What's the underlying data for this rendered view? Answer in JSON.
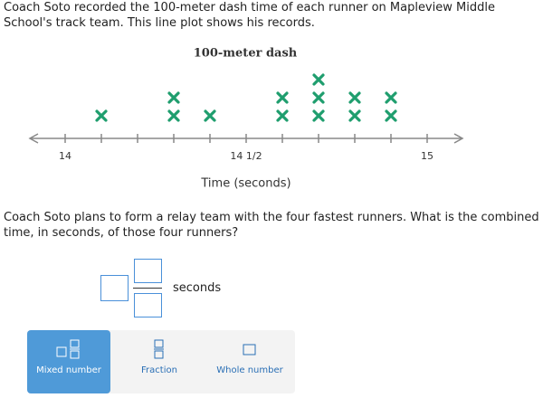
{
  "question": {
    "intro": "Coach Soto recorded the 100-meter dash time of each runner on Mapleview Middle School's track team. This line plot shows his records.",
    "prompt": "Coach Soto plans to form a relay team with the four fastest runners. What is the combined time, in seconds, of those four runners?"
  },
  "chart_data": {
    "type": "line-plot",
    "title": "100-meter dash",
    "x_label": "Time (seconds)",
    "x": [
      14.1,
      14.3,
      14.4,
      14.6,
      14.7,
      14.8,
      14.9
    ],
    "values": [
      1,
      2,
      1,
      2,
      3,
      2,
      2
    ],
    "color": "#1f9e6e",
    "xlim": [
      13.9,
      15.1
    ],
    "xticks": [
      14,
      {
        "value": 14.5,
        "label": "14 1/2"
      },
      15
    ],
    "minor_xticks": [
      14.1,
      14.2,
      14.3,
      14.4,
      14.6,
      14.7,
      14.8,
      14.9
    ]
  },
  "answer": {
    "unit": "seconds"
  },
  "buttons": [
    "Mixed number",
    "Fraction",
    "Whole number"
  ],
  "selected_button": 0
}
